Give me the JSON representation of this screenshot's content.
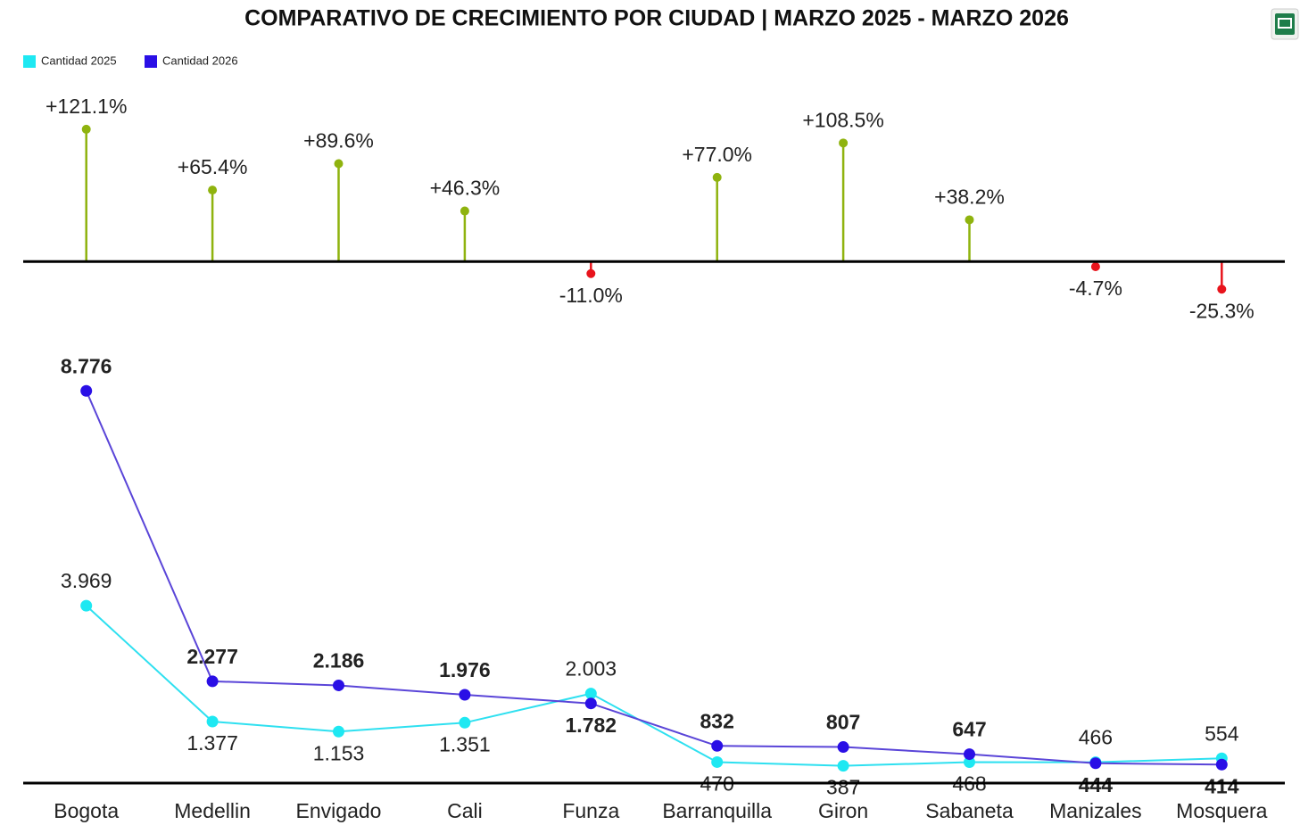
{
  "chart_data": [
    {
      "type": "lollipop",
      "title": "COMPARATIVO DE CRECIMIENTO POR CIUDAD | MARZO 2025 - MARZO 2026",
      "values": [
        121.1,
        65.4,
        89.6,
        46.3,
        -11.0,
        77.0,
        108.5,
        38.2,
        -4.7,
        -25.3
      ],
      "value_labels": [
        "+121.1%",
        "+65.4%",
        "+89.6%",
        "+46.3%",
        "-11.0%",
        "+77.0%",
        "+108.5%",
        "+38.2%",
        "-4.7%",
        "-25.3%"
      ],
      "positive_color": "#8fb30e",
      "negative_color": "#e8141c",
      "ylim": [
        -30,
        130
      ]
    },
    {
      "type": "line",
      "categories": [
        "Bogota",
        "Medellin",
        "Envigado",
        "Cali",
        "Funza",
        "Barranquilla",
        "Giron",
        "Sabaneta",
        "Manizales",
        "Mosquera"
      ],
      "series": [
        {
          "name": "Cantidad 2025",
          "color": "#1ee8f2",
          "line_color": "#2ee0f0",
          "values": [
            3969,
            1377,
            1153,
            1351,
            2003,
            470,
            387,
            468,
            466,
            554
          ],
          "value_labels": [
            "3.969",
            "1.377",
            "1.153",
            "1.351",
            "2.003",
            "470",
            "387",
            "468",
            "466",
            "554"
          ]
        },
        {
          "name": "Cantidad 2026",
          "color": "#2a0fe6",
          "line_color": "#5a45d8",
          "values": [
            8776,
            2277,
            2186,
            1976,
            1782,
            832,
            807,
            647,
            444,
            414
          ],
          "value_labels": [
            "8.776",
            "2.277",
            "2.186",
            "1.976",
            "1.782",
            "832",
            "807",
            "647",
            "444",
            "414"
          ]
        }
      ],
      "ylim": [
        0,
        9000
      ],
      "legend": "top-left"
    }
  ]
}
